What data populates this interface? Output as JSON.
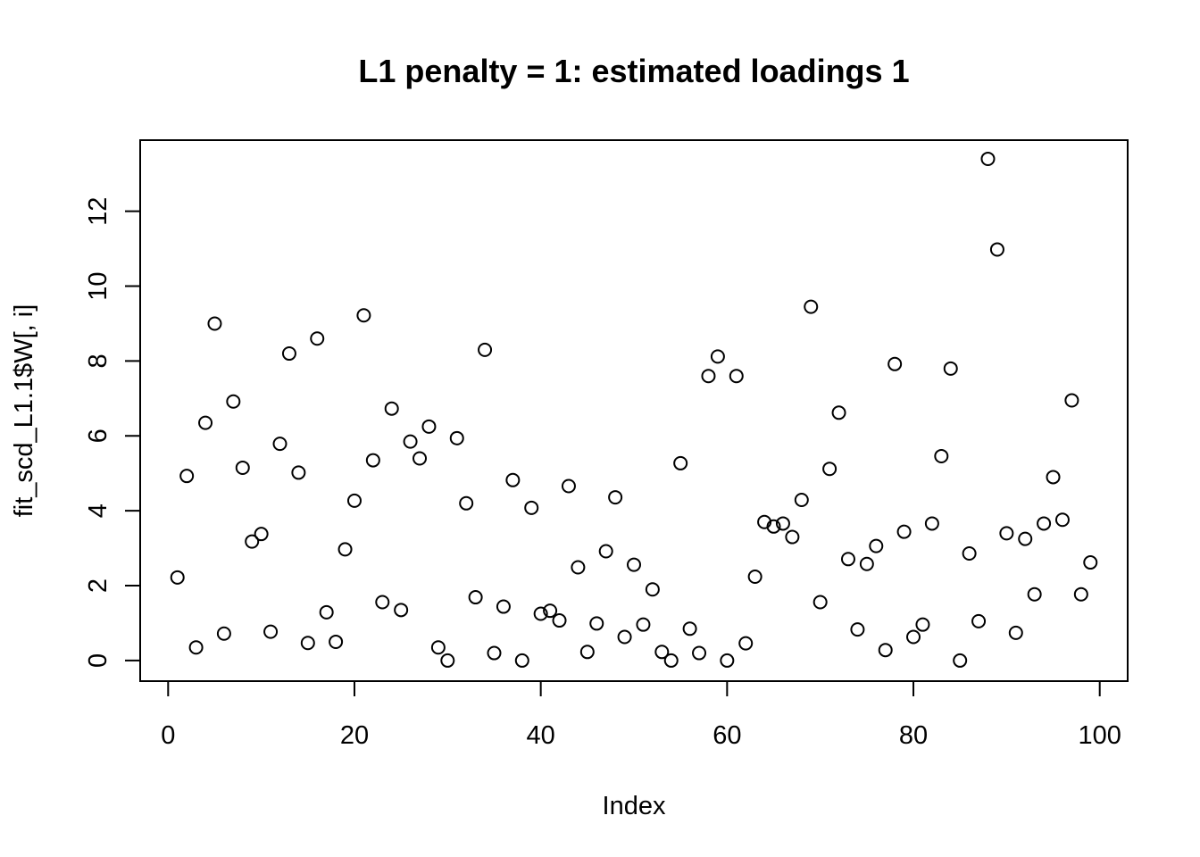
{
  "chart_data": {
    "type": "scatter",
    "title": "L1 penalty = 1: estimated loadings 1",
    "xlabel": "Index",
    "ylabel": "fit_scd_L1.1$W[, i]",
    "xlim": [
      -3,
      103
    ],
    "ylim": [
      -0.55,
      13.9
    ],
    "xticks": [
      0,
      20,
      40,
      60,
      80,
      100
    ],
    "xtick_labels": [
      "0",
      "20",
      "40",
      "60",
      "80",
      "100"
    ],
    "yticks": [
      0,
      2,
      4,
      6,
      8,
      10,
      12
    ],
    "ytick_labels": [
      "0",
      "2",
      "4",
      "6",
      "8",
      "10",
      "12"
    ],
    "grid": false,
    "legend": "none",
    "x": [
      1,
      2,
      3,
      4,
      5,
      6,
      7,
      8,
      9,
      10,
      11,
      12,
      13,
      14,
      15,
      16,
      17,
      18,
      19,
      20,
      21,
      22,
      23,
      24,
      25,
      26,
      27,
      28,
      29,
      30,
      31,
      32,
      33,
      34,
      35,
      36,
      37,
      38,
      39,
      40,
      41,
      42,
      43,
      44,
      45,
      46,
      47,
      48,
      49,
      50,
      51,
      52,
      53,
      54,
      55,
      56,
      57,
      58,
      59,
      60,
      61,
      62,
      63,
      64,
      65,
      66,
      67,
      68,
      69,
      70,
      71,
      72,
      73,
      74,
      75,
      76,
      77,
      78,
      79,
      80,
      81,
      82,
      83,
      84,
      85,
      86,
      87,
      88,
      89,
      90,
      91,
      92,
      93,
      94,
      95,
      96,
      97,
      98,
      99
    ],
    "y": [
      2.22,
      4.93,
      0.35,
      6.35,
      9.0,
      0.72,
      6.92,
      5.15,
      3.18,
      3.38,
      0.77,
      5.79,
      8.2,
      5.02,
      0.47,
      8.6,
      1.29,
      0.5,
      2.97,
      4.27,
      9.22,
      5.35,
      1.56,
      6.73,
      1.35,
      5.85,
      5.4,
      6.25,
      0.35,
      0.0,
      5.94,
      4.2,
      1.69,
      8.3,
      0.2,
      1.44,
      4.82,
      0.0,
      4.08,
      1.25,
      1.33,
      1.07,
      4.66,
      2.49,
      0.23,
      0.99,
      2.92,
      4.36,
      0.63,
      2.56,
      0.96,
      1.9,
      0.23,
      0.0,
      5.27,
      0.85,
      0.2,
      7.6,
      8.12,
      0.0,
      7.6,
      0.46,
      2.24,
      3.7,
      3.58,
      3.66,
      3.3,
      4.29,
      9.45,
      1.56,
      5.12,
      6.62,
      2.71,
      0.83,
      2.58,
      3.06,
      0.28,
      7.92,
      3.44,
      0.63,
      0.96,
      3.66,
      5.46,
      7.8,
      0.0,
      2.86,
      1.05,
      13.4,
      10.98,
      3.4,
      0.74,
      3.25,
      1.77,
      3.66,
      4.9,
      3.76,
      6.95,
      1.77,
      2.62
    ]
  }
}
